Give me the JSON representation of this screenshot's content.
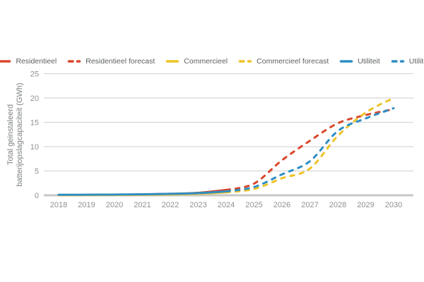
{
  "chart_data": {
    "type": "line",
    "title": "",
    "ylabel_line1": "Total geinstaleerd",
    "ylabel_line2": "batterijopslagcapaciteit (GWh)",
    "xlabel": "",
    "x_ticks": [
      "2018",
      "2019",
      "2020",
      "2021",
      "2022",
      "2023",
      "2024",
      "2025",
      "2026",
      "2027",
      "2028",
      "2029",
      "2030"
    ],
    "y_ticks": [
      0,
      5,
      10,
      15,
      20,
      25
    ],
    "xlim": [
      2018,
      2030
    ],
    "ylim": [
      0,
      25
    ],
    "grid": true,
    "legend_position": "top",
    "series": [
      {
        "name": "Residentieel",
        "color": "#d9472b",
        "style": "solid",
        "x": [
          2018,
          2019,
          2020,
          2021,
          2022,
          2023,
          2024
        ],
        "values": [
          0.05,
          0.08,
          0.12,
          0.18,
          0.3,
          0.5,
          1.1
        ]
      },
      {
        "name": "Residentieel forecast",
        "color": "#d9472b",
        "style": "dashed",
        "x": [
          2024,
          2025,
          2026,
          2027,
          2028,
          2029,
          2030
        ],
        "values": [
          1.1,
          2.4,
          7.2,
          11.2,
          14.8,
          16.5,
          17.7
        ]
      },
      {
        "name": "Commercieel",
        "color": "#edc327",
        "style": "solid",
        "x": [
          2018,
          2019,
          2020,
          2021,
          2022,
          2023,
          2024
        ],
        "values": [
          0.02,
          0.04,
          0.07,
          0.1,
          0.18,
          0.3,
          0.6
        ]
      },
      {
        "name": "Commercieel forecast",
        "color": "#edc327",
        "style": "dashed",
        "x": [
          2024,
          2025,
          2026,
          2027,
          2028,
          2029,
          2030
        ],
        "values": [
          0.6,
          1.3,
          3.5,
          5.5,
          12.2,
          17.0,
          20.0
        ]
      },
      {
        "name": "Utiliteit",
        "color": "#2e8ec4",
        "style": "solid",
        "x": [
          2018,
          2019,
          2020,
          2021,
          2022,
          2023,
          2024
        ],
        "values": [
          0.1,
          0.12,
          0.15,
          0.2,
          0.3,
          0.45,
          0.8
        ]
      },
      {
        "name": "Utiliteit forecast",
        "color": "#2e8ec4",
        "style": "dashed",
        "x": [
          2024,
          2025,
          2026,
          2027,
          2028,
          2029,
          2030
        ],
        "values": [
          0.8,
          1.7,
          4.3,
          7.0,
          13.2,
          15.8,
          17.9
        ]
      }
    ],
    "style_colors": {
      "gridline": "#d8d8d8",
      "zero_axis": "#c7c7c7",
      "tick_text": "#8e9093",
      "legend_text": "#5d6063",
      "axis_title_text": "#7d8083"
    }
  }
}
